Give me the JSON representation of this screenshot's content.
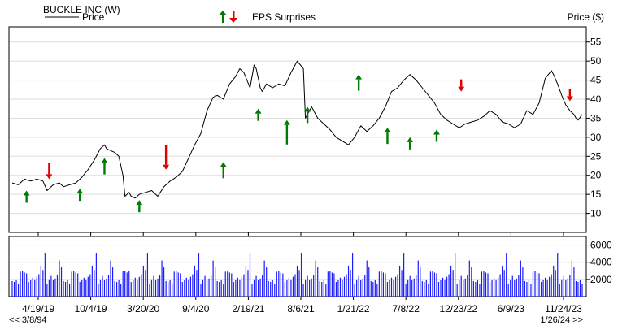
{
  "chart_data": {
    "type": "line",
    "title": "BUCKLE INC (W)",
    "legend": {
      "price_label": "Price",
      "eps_label": "EPS Surprises"
    },
    "price_axis": {
      "label": "Price ($)",
      "ylim": [
        5,
        59
      ],
      "ticks": [
        10,
        15,
        20,
        25,
        30,
        35,
        40,
        45,
        50,
        55
      ]
    },
    "volume_axis": {
      "ylim": [
        0,
        7000
      ],
      "ticks": [
        2000,
        4000,
        6000
      ]
    },
    "x_tick_labels": [
      "4/19/19",
      "10/4/19",
      "3/20/20",
      "9/4/20",
      "2/19/21",
      "8/6/21",
      "1/21/22",
      "7/8/22",
      "12/23/22",
      "6/9/23",
      "11/24/23"
    ],
    "nav": {
      "back": "<< 3/8/94",
      "forward": "1/26/24 >>"
    },
    "colors": {
      "price_line": "#000000",
      "volume_bar": "#1a1aff",
      "eps_beat": "#007a00",
      "eps_miss": "#e00000",
      "grid": "#dddddd"
    },
    "price_series": {
      "name": "Price",
      "x_week": [
        0,
        3,
        6,
        9,
        12,
        15,
        17,
        20,
        23,
        25,
        28,
        31,
        34,
        37,
        40,
        43,
        45,
        46,
        48,
        50,
        52,
        54,
        55,
        57,
        58,
        60,
        62,
        65,
        68,
        71,
        74,
        77,
        80,
        83,
        86,
        89,
        92,
        95,
        98,
        100,
        103,
        106,
        109,
        111,
        113,
        116,
        118,
        119,
        121,
        122,
        124,
        127,
        130,
        133,
        136,
        139,
        142,
        143,
        146,
        149,
        152,
        155,
        158,
        161,
        164,
        167,
        170,
        173,
        176,
        179,
        182,
        185,
        188,
        191,
        194,
        197,
        200,
        203,
        206,
        209,
        212,
        215,
        218,
        221,
        224,
        227,
        230,
        233,
        236,
        239,
        242,
        245,
        248,
        251,
        254,
        257,
        260,
        263,
        264,
        266,
        268,
        270,
        272,
        274,
        275,
        276,
        278
      ],
      "values": [
        18,
        17.5,
        19,
        18.5,
        19,
        18.5,
        16,
        17.5,
        18,
        17,
        17.5,
        18,
        19.5,
        21.5,
        24,
        27,
        28,
        27,
        26.5,
        26,
        25,
        20,
        14.5,
        15.5,
        14.5,
        14,
        15,
        15.5,
        16,
        14.5,
        17,
        18.5,
        19.5,
        21,
        24.5,
        28,
        31,
        37,
        40.5,
        41,
        40,
        44,
        46,
        48,
        47,
        43,
        49,
        48,
        43,
        42,
        44,
        43,
        44,
        43.5,
        47,
        50,
        48,
        35,
        38,
        35,
        33.5,
        32,
        30,
        29,
        28,
        30,
        33,
        31.5,
        33,
        35,
        38,
        42,
        43,
        45,
        46.5,
        45,
        43,
        41,
        39,
        36,
        34.5,
        33.5,
        32.5,
        33.5,
        34,
        34.5,
        35.5,
        37,
        36,
        34,
        33.5,
        32.5,
        33.5,
        37,
        36,
        39,
        45.5,
        47.5,
        46.5,
        44,
        41,
        38.5,
        37,
        36,
        35,
        34.5,
        36
      ]
    },
    "volume_series": {
      "name": "Volume",
      "pattern": [
        1800,
        2100,
        1500,
        2600,
        1900,
        2300,
        3000,
        1700,
        2500,
        2000,
        3600,
        1600,
        2200,
        2800,
        1900,
        4200,
        2400,
        1800,
        3100,
        2000,
        2700,
        1500,
        3400,
        2100,
        1900,
        5100,
        2300,
        1700,
        2900,
        2200
      ]
    },
    "eps_surprises": [
      {
        "week": 7,
        "type": "beat",
        "price": 16,
        "size": 1
      },
      {
        "week": 18,
        "type": "miss",
        "price": 19,
        "size": 2
      },
      {
        "week": 33,
        "type": "beat",
        "price": 16.5,
        "size": 1
      },
      {
        "week": 45,
        "type": "beat",
        "price": 24.5,
        "size": 2
      },
      {
        "week": 62,
        "type": "beat",
        "price": 13.5,
        "size": 1
      },
      {
        "week": 75,
        "type": "miss",
        "price": 21.5,
        "size": 4
      },
      {
        "week": 103,
        "type": "beat",
        "price": 23.5,
        "size": 2
      },
      {
        "week": 120,
        "type": "beat",
        "price": 37.5,
        "size": 1
      },
      {
        "week": 134,
        "type": "beat",
        "price": 34.5,
        "size": 4
      },
      {
        "week": 144,
        "type": "beat",
        "price": 38,
        "size": 2
      },
      {
        "week": 169,
        "type": "beat",
        "price": 46.5,
        "size": 2
      },
      {
        "week": 183,
        "type": "beat",
        "price": 32.5,
        "size": 2
      },
      {
        "week": 194,
        "type": "beat",
        "price": 30,
        "size": 1
      },
      {
        "week": 207,
        "type": "beat",
        "price": 32,
        "size": 1
      },
      {
        "week": 219,
        "type": "miss",
        "price": 42,
        "size": 1
      },
      {
        "week": 272,
        "type": "miss",
        "price": 39.5,
        "size": 1
      }
    ]
  }
}
